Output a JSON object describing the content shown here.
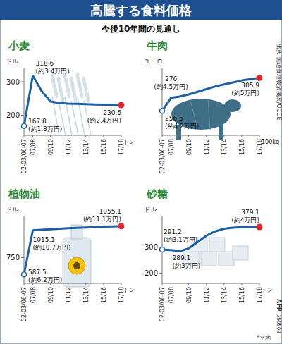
{
  "header": {
    "title": "高騰する食料価格",
    "subtitle": "今後10年間の見通し",
    "source": "出典:国連食糧農業機関/OCDE",
    "credit": "AFP",
    "code": "290508",
    "footnote": "*平均"
  },
  "chart_data": [
    {
      "type": "line",
      "title": "小麦",
      "y_label": "ドル",
      "x_label": "トン",
      "color": "#1f5fa6",
      "grid": false,
      "data_labels": true,
      "categories": [
        "02-03/06-07",
        "07/08",
        null,
        "09/10",
        null,
        "11/12",
        null,
        "13/14",
        null,
        "15/16",
        null,
        "17/18"
      ],
      "values": [
        167.8,
        318.6,
        272,
        241,
        237,
        235,
        234,
        233,
        232,
        231.5,
        231,
        230.6
      ],
      "value_labels": [
        "167.8\n(約1.8万円)",
        "318.6\n(約3.4万円)",
        null,
        null,
        null,
        null,
        null,
        null,
        null,
        null,
        null,
        "230.6\n(約2.4万円)"
      ],
      "ylim": [
        140,
        340
      ],
      "yticks": [
        200,
        300
      ]
    },
    {
      "type": "line",
      "title": "牛肉",
      "y_label": "ユーロ",
      "x_label": "100kg",
      "color": "#1f5fa6",
      "grid": false,
      "data_labels": true,
      "tick_labels": "x",
      "categories": [
        "02-03/06-07",
        "07/08",
        null,
        "09/10",
        null,
        "11/12",
        null,
        "13/14",
        null,
        "15/16",
        null,
        "17/18"
      ],
      "values": [
        256.5,
        276,
        278,
        281,
        285,
        289,
        293,
        296,
        299,
        302,
        304,
        305.9
      ],
      "value_labels": [
        "256.5\n(約4.2万円)",
        "276\n(約4.5万円)",
        null,
        null,
        null,
        null,
        null,
        null,
        null,
        null,
        null,
        "305.9\n(約5万円)"
      ],
      "ylim": [
        220,
        320
      ]
    },
    {
      "type": "line",
      "title": "植物油",
      "y_label": "ドル",
      "x_label": "トン",
      "color": "#1f5fa6",
      "grid": false,
      "data_labels": true,
      "categories": [
        "02-03/06-07",
        "07/08",
        null,
        "09/10",
        null,
        "11/12",
        null,
        "13/14",
        null,
        "15/16",
        null,
        "17/18"
      ],
      "values": [
        587.5,
        1015.1,
        1020,
        1025,
        1030,
        1035,
        1039,
        1043,
        1046,
        1050,
        1053,
        1055.1
      ],
      "value_labels": [
        "587.5\n(約6.2万円)",
        "1015.1\n(約10.7万円)",
        null,
        null,
        null,
        null,
        null,
        null,
        null,
        null,
        null,
        "1055.1\n(約11.1万円)"
      ],
      "ylim": [
        500,
        1150
      ],
      "yticks": [
        750
      ]
    },
    {
      "type": "line",
      "title": "砂糖",
      "y_label": "ドル",
      "x_label": "トン",
      "color": "#1f5fa6",
      "grid": false,
      "data_labels": true,
      "categories": [
        "02-03/06-07",
        "07/08",
        null,
        "09/10",
        null,
        "11/12",
        null,
        "13/14",
        null,
        "15/16",
        null,
        "17/18"
      ],
      "values": [
        291.2,
        289.1,
        285,
        296,
        320,
        345,
        362,
        372,
        376,
        378,
        379,
        379.1
      ],
      "value_labels": [
        "291.2\n(約3.1万円)",
        "289.1\n(約3万円)",
        null,
        null,
        null,
        null,
        null,
        null,
        null,
        null,
        null,
        "379.1\n(約4万円)"
      ],
      "ylim": [
        160,
        420
      ],
      "yticks": [
        200,
        300
      ]
    }
  ]
}
